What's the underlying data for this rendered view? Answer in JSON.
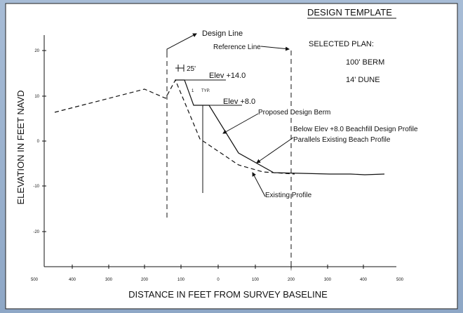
{
  "header": {
    "title": "DESIGN TEMPLATE"
  },
  "plan": {
    "label": "SELECTED PLAN:",
    "items": [
      "100' BERM",
      "14' DUNE"
    ]
  },
  "annotations": {
    "design_line": "Design Line",
    "reference_line": "Reference Line",
    "width": "25'",
    "elev_top": "Elev +14.0",
    "slope_rise": "1",
    "slope_typ": "TYP.",
    "elev_mid": "Elev +8.0",
    "proposed": "Proposed Design Berm",
    "below_1": "Below Elev +8.0 Beachfill Design Profile",
    "below_2": "Parallels Existing Beach Profile",
    "existing": "Existing Profile"
  },
  "axes": {
    "y_label": "ELEVATION IN FEET NAVD",
    "x_label": "DISTANCE IN FEET FROM SURVEY BASELINE",
    "yticks": [
      "20",
      "10",
      "0",
      "-10",
      "-20"
    ],
    "xticks": [
      "500",
      "400",
      "300",
      "200",
      "100",
      "0",
      "100",
      "200",
      "300",
      "400",
      "500"
    ]
  }
}
